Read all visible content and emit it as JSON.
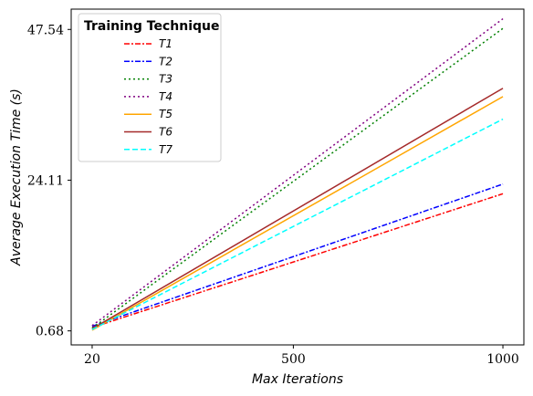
{
  "chart_data": {
    "type": "line",
    "title": "",
    "xlabel": "Max Iterations",
    "ylabel": "Average Execution Time (s)",
    "x": [
      20,
      1000
    ],
    "xticks": [
      20,
      500,
      1000
    ],
    "xtick_labels": [
      "20",
      "500",
      "1000"
    ],
    "yticks": [
      0.68,
      24.11,
      47.54
    ],
    "ytick_labels": [
      "0.68",
      "24.11",
      "47.54"
    ],
    "xlim": [
      -30,
      1050
    ],
    "ylim": [
      -1.5,
      50.7
    ],
    "grid": false,
    "legend": {
      "title": "Training Technique",
      "placement": "top-left"
    },
    "series": [
      {
        "name": "T1",
        "values": [
          1.2,
          22.0
        ],
        "color": "#ff0000",
        "dash": "dashdot"
      },
      {
        "name": "T2",
        "values": [
          1.4,
          23.5
        ],
        "color": "#0000ff",
        "dash": "dashdot"
      },
      {
        "name": "T3",
        "values": [
          1.1,
          47.7
        ],
        "color": "#008000",
        "dash": "dotted"
      },
      {
        "name": "T4",
        "values": [
          1.5,
          49.2
        ],
        "color": "#800080",
        "dash": "dotted"
      },
      {
        "name": "T5",
        "values": [
          0.8,
          37.1
        ],
        "color": "#ffa500",
        "dash": "solid"
      },
      {
        "name": "T6",
        "values": [
          1.0,
          38.4
        ],
        "color": "#a52a2a",
        "dash": "solid"
      },
      {
        "name": "T7",
        "values": [
          0.9,
          33.6
        ],
        "color": "#00ffff",
        "dash": "dashed"
      }
    ]
  }
}
